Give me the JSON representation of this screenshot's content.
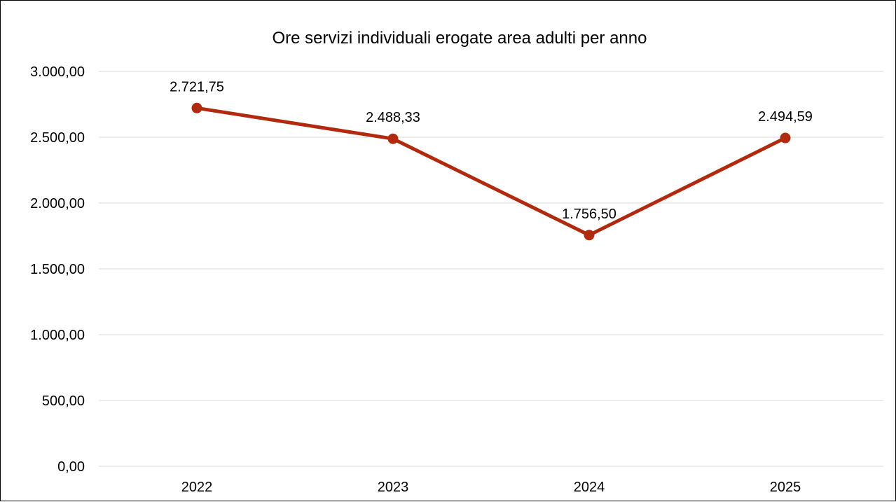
{
  "chart_data": {
    "type": "line",
    "title": "Ore servizi individuali erogate area adulti per anno",
    "categories": [
      "2022",
      "2023",
      "2024",
      "2025"
    ],
    "series": [
      {
        "values": [
          2721.75,
          2488.33,
          1756.5,
          2494.59
        ],
        "labels": [
          "2.721,75",
          "2.488,33",
          "1.756,50",
          "2.494,59"
        ]
      }
    ],
    "yticks": [
      0,
      500,
      1000,
      1500,
      2000,
      2500,
      3000
    ],
    "ytick_labels": [
      "0,00",
      "500,00",
      "1.000,00",
      "1.500,00",
      "2.000,00",
      "2.500,00",
      "3.000,00"
    ],
    "ylim": [
      0,
      3000
    ],
    "xlabel": "",
    "ylabel": "",
    "grid": true,
    "legend": "none",
    "colors": {
      "line": "#B22A0E",
      "grid": "#D9D9D9"
    }
  }
}
